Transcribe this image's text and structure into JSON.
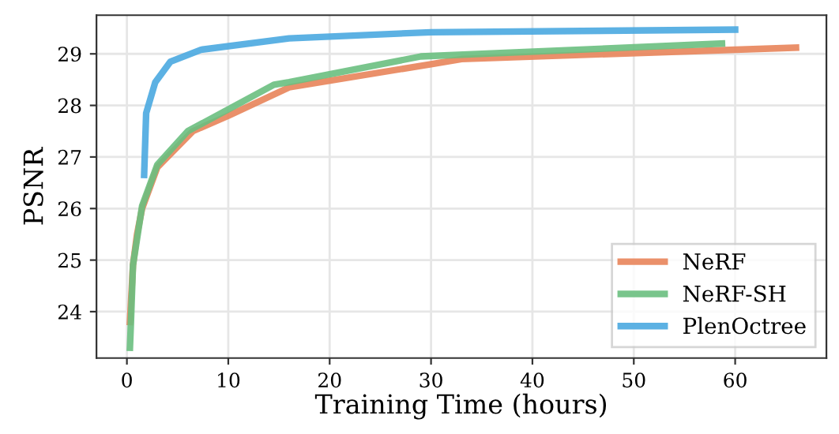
{
  "chart_data": {
    "type": "line",
    "xlabel": "Training Time (hours)",
    "ylabel": "PSNR",
    "xlim": [
      -3,
      69
    ],
    "ylim": [
      23.1,
      29.75
    ],
    "xticks": [
      0,
      10,
      20,
      30,
      40,
      50,
      60
    ],
    "yticks": [
      24,
      25,
      26,
      27,
      28,
      29
    ],
    "grid": true,
    "legend": "bottom right",
    "marker": "none",
    "line_style": "solid",
    "series": [
      {
        "name": "NeRF",
        "color": "#e8845a",
        "x": [
          0.3,
          0.6,
          1.0,
          1.5,
          3.0,
          6.5,
          10,
          16,
          30,
          33,
          66
        ],
        "values": [
          23.8,
          24.9,
          25.5,
          26.0,
          26.8,
          27.5,
          27.8,
          28.35,
          28.8,
          28.9,
          29.12
        ]
      },
      {
        "name": "NeRF-SH",
        "color": "#6abf80",
        "x": [
          0.3,
          0.4,
          0.6,
          1.5,
          3.0,
          6.0,
          14.5,
          16,
          29,
          58.7
        ],
        "values": [
          23.3,
          23.8,
          24.9,
          26.05,
          26.85,
          27.5,
          28.4,
          28.45,
          28.95,
          29.2
        ]
      },
      {
        "name": "PlenOctree",
        "color": "#4aa8e0",
        "x": [
          1.7,
          1.9,
          2.8,
          4.3,
          7.3,
          16,
          30,
          60
        ],
        "values": [
          26.65,
          27.85,
          28.45,
          28.85,
          29.08,
          29.3,
          29.42,
          29.47
        ]
      }
    ]
  }
}
